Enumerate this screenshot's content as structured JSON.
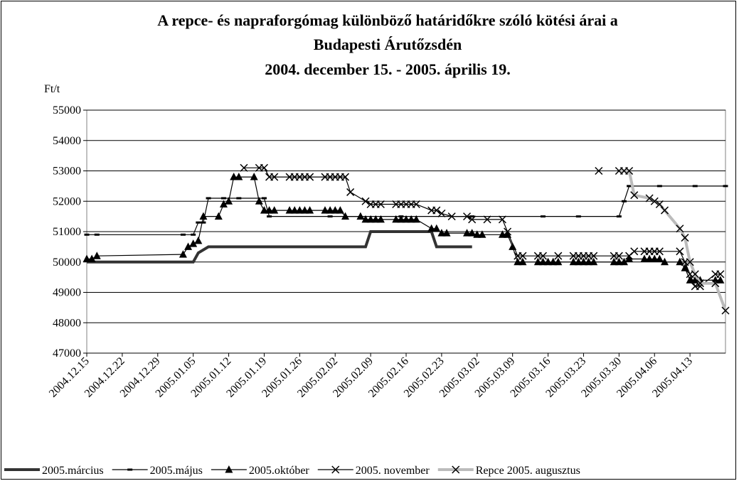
{
  "chart_data": {
    "type": "line",
    "title": [
      "A repce- és napraforgómag különböző határidőkre szóló kötési árai a",
      "Budapesti Árutőzsdén",
      "2004. december 15. - 2005. április 19."
    ],
    "y_label": "Ft/t",
    "xlim": [
      "2004.12.15",
      "2005.04.20"
    ],
    "xticks": [
      "2004.12.15",
      "2004.12.22",
      "2004.12.29",
      "2005.01.05",
      "2005.01.12",
      "2005.01.19",
      "2005.01.26",
      "2005.02.02",
      "2005.02.09",
      "2005.02.16",
      "2005.02.23",
      "2005.03.02",
      "2005.03.09",
      "2005.03.16",
      "2005.03.23",
      "2005.03.30",
      "2005.04.06",
      "2005.04.13"
    ],
    "ylim": [
      47000,
      55000
    ],
    "yticks": [
      47000,
      48000,
      49000,
      50000,
      51000,
      52000,
      53000,
      54000,
      55000
    ],
    "grid": true,
    "legend": "bottom",
    "series": [
      {
        "name": "2005.március",
        "color": "#333333",
        "marker": "none",
        "x": [
          "2004.12.15",
          "2005.01.05",
          "2005.01.06",
          "2005.01.08",
          "2005.02.08",
          "2005.02.09",
          "2005.02.21",
          "2005.02.22",
          "2005.03.01"
        ],
        "values": [
          50000,
          50000,
          50300,
          50500,
          50500,
          51000,
          51000,
          50500,
          50500
        ]
      },
      {
        "name": "2005.május",
        "color": "#000000",
        "marker": "dash",
        "x": [
          "2004.12.15",
          "2004.12.17",
          "2005.01.03",
          "2005.01.05",
          "2005.01.06",
          "2005.01.07",
          "2005.01.08",
          "2005.01.11",
          "2005.01.14",
          "2005.01.19",
          "2005.01.20",
          "2005.02.01",
          "2005.02.15",
          "2005.03.01",
          "2005.03.15",
          "2005.03.22",
          "2005.03.30",
          "2005.03.31",
          "2005.04.01",
          "2005.04.07",
          "2005.04.14",
          "2005.04.20"
        ],
        "values": [
          50900,
          50900,
          50900,
          50900,
          51300,
          51300,
          52100,
          52100,
          52100,
          52100,
          51500,
          51500,
          51500,
          51500,
          51500,
          51500,
          51500,
          52000,
          52500,
          52500,
          52500,
          52500
        ]
      },
      {
        "name": "2005.október",
        "color": "#000000",
        "marker": "triangle",
        "x": [
          "2004.12.15",
          "2004.12.16",
          "2004.12.17",
          "2005.01.03",
          "2005.01.04",
          "2005.01.05",
          "2005.01.06",
          "2005.01.07",
          "2005.01.10",
          "2005.01.11",
          "2005.01.12",
          "2005.01.13",
          "2005.01.14",
          "2005.01.17",
          "2005.01.18",
          "2005.01.19",
          "2005.01.20",
          "2005.01.21",
          "2005.01.24",
          "2005.01.25",
          "2005.01.26",
          "2005.01.27",
          "2005.01.28",
          "2005.01.31",
          "2005.02.01",
          "2005.02.02",
          "2005.02.03",
          "2005.02.04",
          "2005.02.07",
          "2005.02.08",
          "2005.02.09",
          "2005.02.10",
          "2005.02.11",
          "2005.02.14",
          "2005.02.15",
          "2005.02.16",
          "2005.02.17",
          "2005.02.18",
          "2005.02.21",
          "2005.02.22",
          "2005.02.23",
          "2005.02.24",
          "2005.02.28",
          "2005.03.01",
          "2005.03.02",
          "2005.03.03",
          "2005.03.07",
          "2005.03.08",
          "2005.03.09",
          "2005.03.10",
          "2005.03.11",
          "2005.03.14",
          "2005.03.15",
          "2005.03.16",
          "2005.03.17",
          "2005.03.18",
          "2005.03.21",
          "2005.03.22",
          "2005.03.23",
          "2005.03.24",
          "2005.03.25",
          "2005.03.29",
          "2005.03.30",
          "2005.03.31",
          "2005.04.01",
          "2005.04.04",
          "2005.04.05",
          "2005.04.06",
          "2005.04.07",
          "2005.04.08",
          "2005.04.11",
          "2005.04.12",
          "2005.04.13",
          "2005.04.14",
          "2005.04.15",
          "2005.04.18",
          "2005.04.19"
        ],
        "values": [
          50100,
          50100,
          50200,
          50250,
          50500,
          50600,
          50700,
          51500,
          51500,
          51900,
          52000,
          52800,
          52800,
          52800,
          52000,
          51700,
          51700,
          51700,
          51700,
          51700,
          51700,
          51700,
          51700,
          51700,
          51700,
          51700,
          51700,
          51500,
          51500,
          51400,
          51400,
          51400,
          51400,
          51400,
          51400,
          51400,
          51400,
          51400,
          51100,
          51100,
          50950,
          50950,
          50950,
          50950,
          50900,
          50900,
          50900,
          50900,
          50500,
          50000,
          50000,
          50000,
          50000,
          50000,
          50000,
          50000,
          50000,
          50000,
          50000,
          50000,
          50000,
          50000,
          50000,
          50000,
          50100,
          50100,
          50100,
          50100,
          50100,
          50000,
          50000,
          49800,
          49400,
          49400,
          49400,
          49400,
          49400
        ]
      },
      {
        "name": "2005. november",
        "color": "#000000",
        "marker": "cross",
        "x": [
          "2005.01.15",
          "2005.01.18",
          "2005.01.19",
          "2005.01.20",
          "2005.01.21",
          "2005.01.24",
          "2005.01.25",
          "2005.01.26",
          "2005.01.27",
          "2005.01.28",
          "2005.01.31",
          "2005.02.01",
          "2005.02.02",
          "2005.02.03",
          "2005.02.04",
          "2005.02.05",
          "2005.02.08",
          "2005.02.09",
          "2005.02.10",
          "2005.02.11",
          "2005.02.14",
          "2005.02.15",
          "2005.02.16",
          "2005.02.17",
          "2005.02.18",
          "2005.02.21",
          "2005.02.22",
          "2005.02.23",
          "2005.02.25",
          "2005.02.28",
          "2005.03.01",
          "2005.03.04",
          "2005.03.07",
          "2005.03.08",
          "2005.03.10",
          "2005.03.11",
          "2005.03.14",
          "2005.03.15",
          "2005.03.18",
          "2005.03.21",
          "2005.03.22",
          "2005.03.23",
          "2005.03.24",
          "2005.03.25",
          "2005.03.29",
          "2005.03.30",
          "2005.04.01",
          "2005.04.02",
          "2005.04.04",
          "2005.04.05",
          "2005.04.06",
          "2005.04.07",
          "2005.04.11",
          "2005.04.12",
          "2005.04.13",
          "2005.04.14",
          "2005.04.15",
          "2005.04.18",
          "2005.04.19"
        ],
        "values": [
          53100,
          53100,
          53100,
          52800,
          52800,
          52800,
          52800,
          52800,
          52800,
          52800,
          52800,
          52800,
          52800,
          52800,
          52800,
          52300,
          52000,
          51900,
          51900,
          51900,
          51900,
          51900,
          51900,
          51900,
          51900,
          51700,
          51700,
          51600,
          51500,
          51500,
          51400,
          51400,
          51400,
          51000,
          50200,
          50200,
          50200,
          50200,
          50200,
          50200,
          50200,
          50200,
          50200,
          50200,
          50200,
          50200,
          50200,
          50350,
          50350,
          50350,
          50350,
          50350,
          50350,
          50000,
          49600,
          49200,
          49200,
          49600,
          49600
        ]
      },
      {
        "name": "Repce 2005. augusztus",
        "color": "#bbbbbb",
        "marker": "cross",
        "x": [
          "2005.03.26",
          "2005.03.28",
          "2005.03.30",
          "2005.03.31",
          "2005.04.01",
          "2005.04.02",
          "2005.04.05",
          "2005.04.06",
          "2005.04.07",
          "2005.04.08",
          "2005.04.11",
          "2005.04.12",
          "2005.04.13",
          "2005.04.14",
          "2005.04.15",
          "2005.04.18",
          "2005.04.20"
        ],
        "values": [
          53000,
          null,
          53000,
          53000,
          53000,
          52200,
          52100,
          52000,
          51900,
          51700,
          51100,
          50800,
          50000,
          49600,
          49300,
          49300,
          48400
        ]
      }
    ]
  }
}
